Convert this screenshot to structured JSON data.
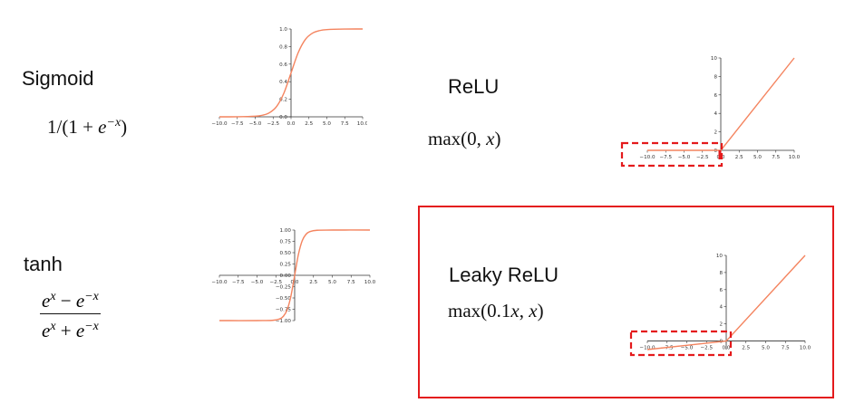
{
  "colors": {
    "curve": "#f4845f",
    "axis": "#333333",
    "highlight": "#e41a1c"
  },
  "functions": {
    "sigmoid": {
      "name": "Sigmoid",
      "formula": {
        "lead": "1/(1 + ",
        "base": "e",
        "exp": "−x",
        "tail": ")"
      }
    },
    "relu": {
      "name": "ReLU",
      "formula": {
        "lead": "max(0, ",
        "var": "x",
        "tail": ")"
      }
    },
    "tanh": {
      "name": "tanh",
      "formula": {
        "num_base1": "e",
        "num_exp1": "x",
        "num_op": " − ",
        "num_base2": "e",
        "num_exp2": "−x",
        "den_base1": "e",
        "den_exp1": "x",
        "den_op": " + ",
        "den_base2": "e",
        "den_exp2": "−x"
      }
    },
    "leaky_relu": {
      "name": "Leaky ReLU",
      "formula": {
        "lead": "max(0.1",
        "var1": "x",
        "mid": ", ",
        "var2": "x",
        "tail": ")"
      }
    }
  },
  "chart_data": [
    {
      "type": "line",
      "id": "sigmoid",
      "x_ticks": [
        "−10.0",
        "−7.5",
        "−5.0",
        "−2.5",
        "0.0",
        "2.5",
        "5.0",
        "7.5",
        "10.0"
      ],
      "y_ticks": [
        "0.0",
        "0.2",
        "0.4",
        "0.6",
        "0.8",
        "1.0"
      ],
      "xlim": [
        -10,
        10
      ],
      "ylim": [
        0,
        1
      ],
      "x": [
        -10,
        -7.5,
        -5,
        -4,
        -3,
        -2,
        -1,
        0,
        1,
        2,
        3,
        4,
        5,
        7.5,
        10
      ],
      "y": [
        0.0,
        0.0006,
        0.0067,
        0.018,
        0.047,
        0.119,
        0.269,
        0.5,
        0.731,
        0.881,
        0.953,
        0.982,
        0.993,
        0.9994,
        1.0
      ]
    },
    {
      "type": "line",
      "id": "relu",
      "x_ticks": [
        "−10.0",
        "−7.5",
        "−5.0",
        "−2.5",
        "0.0",
        "2.5",
        "5.0",
        "7.5",
        "10.0"
      ],
      "y_ticks": [
        "0",
        "2",
        "4",
        "6",
        "8",
        "10"
      ],
      "xlim": [
        -10,
        10
      ],
      "ylim": [
        0,
        10
      ],
      "x": [
        -10,
        0,
        10
      ],
      "y": [
        0,
        0,
        10
      ]
    },
    {
      "type": "line",
      "id": "tanh",
      "x_ticks": [
        "−10.0",
        "−7.5",
        "−5.0",
        "−2.5",
        "0.0",
        "2.5",
        "5.0",
        "7.5",
        "10.0"
      ],
      "y_ticks": [
        "1.00",
        "0.75",
        "0.50",
        "0.25",
        "0.00",
        "−0.25",
        "−0.50",
        "−0.75",
        "−1.00"
      ],
      "xlim": [
        -10,
        10
      ],
      "ylim": [
        -1,
        1
      ],
      "x": [
        -10,
        -5,
        -3,
        -2,
        -1.5,
        -1,
        -0.5,
        0,
        0.5,
        1,
        1.5,
        2,
        3,
        5,
        10
      ],
      "y": [
        -1.0,
        -0.9999,
        -0.995,
        -0.964,
        -0.905,
        -0.762,
        -0.462,
        0,
        0.462,
        0.762,
        0.905,
        0.964,
        0.995,
        0.9999,
        1.0
      ]
    },
    {
      "type": "line",
      "id": "leaky_relu",
      "x_ticks": [
        "−10.0",
        "−7.5",
        "−5.0",
        "−2.5",
        "0.0",
        "2.5",
        "5.0",
        "7.5",
        "10.0"
      ],
      "y_ticks": [
        "0",
        "2",
        "4",
        "6",
        "8",
        "10"
      ],
      "xlim": [
        -10,
        10
      ],
      "ylim": [
        -1,
        10
      ],
      "x": [
        -10,
        0,
        10
      ],
      "y": [
        -1,
        0,
        10
      ]
    }
  ]
}
